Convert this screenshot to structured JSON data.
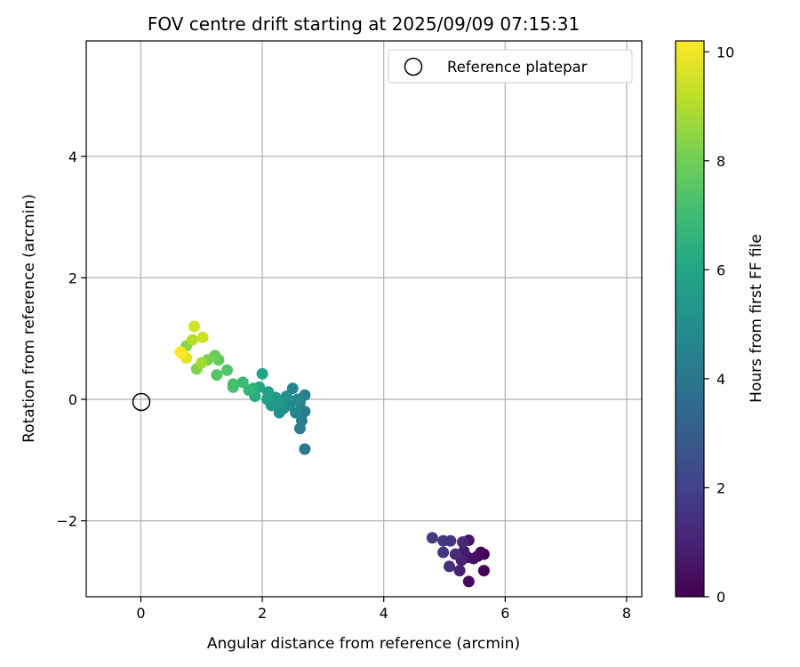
{
  "chart_data": {
    "type": "scatter",
    "title": "FOV centre drift starting at 2025/09/09 07:15:31",
    "xlabel": "Angular distance from reference (arcmin)",
    "ylabel": "Rotation from reference (arcmin)",
    "xlim": [
      -0.9,
      8.25
    ],
    "ylim": [
      -3.25,
      5.9
    ],
    "xticks": [
      "0",
      "2",
      "4",
      "6",
      "8"
    ],
    "yticks": [
      "−2",
      "0",
      "2",
      "4"
    ],
    "grid": true,
    "legend": {
      "position": "top-right",
      "entries": [
        "Reference platepar"
      ]
    },
    "colorbar": {
      "label": "Hours from first FF file",
      "range": [
        0,
        10.2
      ],
      "ticks": [
        "0",
        "2",
        "4",
        "6",
        "8",
        "10"
      ],
      "colormap": "viridis"
    },
    "reference_point": {
      "x": 0,
      "y": 0
    },
    "series": [
      {
        "points": [
          {
            "x": 5.4,
            "y": -3.0,
            "t": 0.2
          },
          {
            "x": 5.65,
            "y": -2.82,
            "t": 0.1
          },
          {
            "x": 5.65,
            "y": -2.55,
            "t": 0.05
          },
          {
            "x": 5.6,
            "y": -2.52,
            "t": 0.15
          },
          {
            "x": 5.55,
            "y": -2.58,
            "t": 0.3
          },
          {
            "x": 5.48,
            "y": -2.62,
            "t": 0.4
          },
          {
            "x": 5.38,
            "y": -2.6,
            "t": 0.5
          },
          {
            "x": 5.4,
            "y": -2.32,
            "t": 0.6
          },
          {
            "x": 5.32,
            "y": -2.5,
            "t": 0.8
          },
          {
            "x": 5.25,
            "y": -2.82,
            "t": 0.9
          },
          {
            "x": 5.28,
            "y": -2.65,
            "t": 1.0
          },
          {
            "x": 5.3,
            "y": -2.35,
            "t": 1.2
          },
          {
            "x": 5.18,
            "y": -2.55,
            "t": 1.3
          },
          {
            "x": 5.08,
            "y": -2.75,
            "t": 1.4
          },
          {
            "x": 5.1,
            "y": -2.33,
            "t": 1.5
          },
          {
            "x": 4.98,
            "y": -2.52,
            "t": 1.6
          },
          {
            "x": 4.98,
            "y": -2.33,
            "t": 1.7
          },
          {
            "x": 4.8,
            "y": -2.28,
            "t": 1.8
          },
          {
            "x": 2.7,
            "y": -0.82,
            "t": 4.1
          },
          {
            "x": 2.62,
            "y": -0.48,
            "t": 4.2
          },
          {
            "x": 2.65,
            "y": -0.35,
            "t": 4.3
          },
          {
            "x": 2.7,
            "y": -0.2,
            "t": 4.3
          },
          {
            "x": 2.7,
            "y": 0.07,
            "t": 4.4
          },
          {
            "x": 2.62,
            "y": -0.05,
            "t": 4.5
          },
          {
            "x": 2.55,
            "y": -0.22,
            "t": 4.6
          },
          {
            "x": 2.5,
            "y": 0.18,
            "t": 4.7
          },
          {
            "x": 2.58,
            "y": 0.0,
            "t": 4.8
          },
          {
            "x": 2.45,
            "y": -0.1,
            "t": 4.9
          },
          {
            "x": 2.4,
            "y": 0.05,
            "t": 5.0
          },
          {
            "x": 2.35,
            "y": -0.15,
            "t": 5.1
          },
          {
            "x": 2.28,
            "y": -0.22,
            "t": 5.2
          },
          {
            "x": 2.22,
            "y": 0.03,
            "t": 5.3
          },
          {
            "x": 2.28,
            "y": -0.05,
            "t": 5.4
          },
          {
            "x": 2.15,
            "y": -0.1,
            "t": 5.5
          },
          {
            "x": 2.08,
            "y": 0.0,
            "t": 5.7
          },
          {
            "x": 2.1,
            "y": 0.12,
            "t": 5.8
          },
          {
            "x": 2.0,
            "y": 0.42,
            "t": 5.9
          },
          {
            "x": 1.95,
            "y": 0.2,
            "t": 6.1
          },
          {
            "x": 1.88,
            "y": 0.05,
            "t": 6.3
          },
          {
            "x": 1.85,
            "y": 0.18,
            "t": 6.5
          },
          {
            "x": 1.78,
            "y": 0.15,
            "t": 6.7
          },
          {
            "x": 1.68,
            "y": 0.28,
            "t": 6.9
          },
          {
            "x": 1.52,
            "y": 0.2,
            "t": 7.1
          },
          {
            "x": 1.52,
            "y": 0.25,
            "t": 7.2
          },
          {
            "x": 1.42,
            "y": 0.48,
            "t": 7.4
          },
          {
            "x": 1.25,
            "y": 0.4,
            "t": 7.5
          },
          {
            "x": 1.28,
            "y": 0.65,
            "t": 7.7
          },
          {
            "x": 1.22,
            "y": 0.72,
            "t": 7.9
          },
          {
            "x": 1.1,
            "y": 0.65,
            "t": 8.1
          },
          {
            "x": 0.92,
            "y": 0.5,
            "t": 8.3
          },
          {
            "x": 0.75,
            "y": 0.88,
            "t": 8.4
          },
          {
            "x": 1.0,
            "y": 0.6,
            "t": 8.8
          },
          {
            "x": 0.85,
            "y": 0.98,
            "t": 9.1
          },
          {
            "x": 1.02,
            "y": 1.02,
            "t": 9.4
          },
          {
            "x": 0.88,
            "y": 1.2,
            "t": 9.5
          },
          {
            "x": 0.75,
            "y": 0.68,
            "t": 9.8
          },
          {
            "x": 0.68,
            "y": 0.75,
            "t": 10.0
          },
          {
            "x": 0.65,
            "y": 0.78,
            "t": 10.2
          }
        ]
      }
    ]
  }
}
